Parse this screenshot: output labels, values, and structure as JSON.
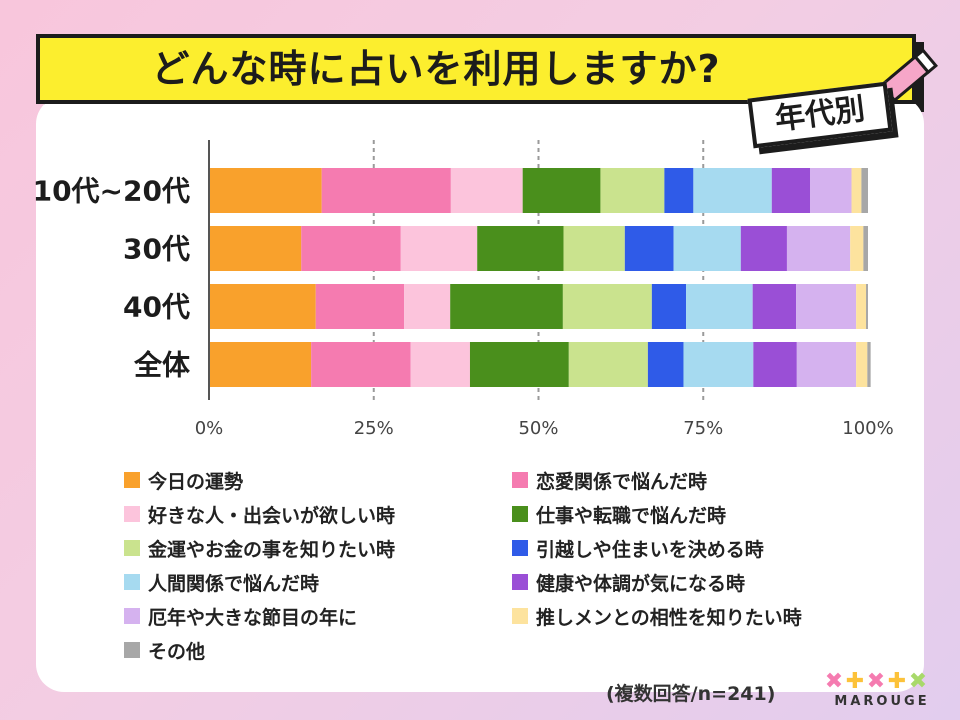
{
  "title": "どんな時に占いを利用しますか?",
  "tag": "年代別",
  "footnote": "(複数回答/n=241)",
  "logo_text": "MAROUGE",
  "chart_data": {
    "type": "bar",
    "orientation": "horizontal",
    "stacked": true,
    "percent_stacked": true,
    "categories": [
      "10代~20代",
      "30代",
      "40代",
      "全体"
    ],
    "xlim": [
      0,
      100
    ],
    "x_ticks": [
      {
        "value": 0,
        "label": "0%"
      },
      {
        "value": 25,
        "label": "25%"
      },
      {
        "value": 50,
        "label": "50%"
      },
      {
        "value": 75,
        "label": "75%"
      },
      {
        "value": 100,
        "label": "100%"
      }
    ],
    "gridlines": [
      25,
      50,
      75
    ],
    "legend_position": "bottom",
    "series": [
      {
        "name": "今日の運勢",
        "color": "#f9a12c",
        "values": [
          17.1,
          14.0,
          16.2,
          15.5
        ]
      },
      {
        "name": "恋愛関係で悩んだ時",
        "color": "#f57bb0",
        "values": [
          19.6,
          15.1,
          13.4,
          15.1
        ]
      },
      {
        "name": "好きな人・出会いが欲しい時",
        "color": "#fcc4dc",
        "values": [
          10.9,
          11.6,
          7.0,
          9.0
        ]
      },
      {
        "name": "仕事や転職で悩んだ時",
        "color": "#4a8f1c",
        "values": [
          11.8,
          13.1,
          17.1,
          15.0
        ]
      },
      {
        "name": "金運やお金の事を知りたい時",
        "color": "#cae38e",
        "values": [
          9.7,
          9.3,
          13.5,
          12.0
        ]
      },
      {
        "name": "引越しや住まいを決める時",
        "color": "#2f5be8",
        "values": [
          4.4,
          7.4,
          5.2,
          5.4
        ]
      },
      {
        "name": "人間関係で悩んだ時",
        "color": "#a6daf0",
        "values": [
          11.9,
          10.2,
          10.1,
          10.6
        ]
      },
      {
        "name": "健康や体調が気になる時",
        "color": "#9a4fd6",
        "values": [
          5.8,
          7.0,
          6.6,
          6.6
        ]
      },
      {
        "name": "厄年や大きな節目の年に",
        "color": "#d5b2ef",
        "values": [
          6.3,
          9.6,
          9.1,
          9.0
        ]
      },
      {
        "name": "推しメンとの相性を知りたい時",
        "color": "#fde39e",
        "values": [
          1.5,
          2.0,
          1.5,
          1.7
        ]
      },
      {
        "name": "その他",
        "color": "#a7a7a7",
        "values": [
          1.0,
          0.7,
          0.3,
          0.5
        ]
      }
    ]
  }
}
